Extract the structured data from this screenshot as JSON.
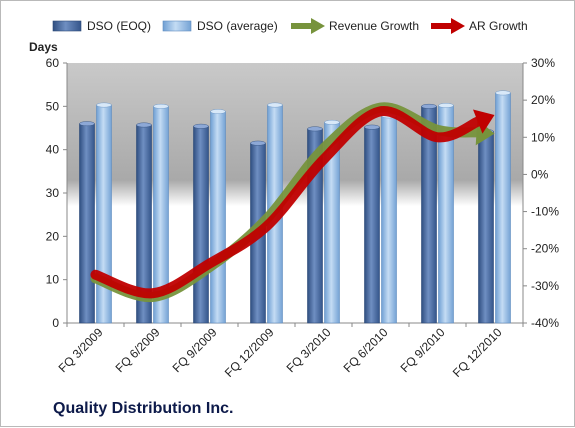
{
  "footer_title": "Quality Distribution Inc.",
  "chart_data": {
    "type": "bar+line",
    "categories": [
      "FQ 3/2009",
      "FQ 6/2009",
      "FQ 9/2009",
      "FQ 12/2009",
      "FQ 3/2010",
      "FQ 6/2010",
      "FQ 9/2010",
      "FQ 12/2010"
    ],
    "series": [
      {
        "name": "DSO (EOQ)",
        "kind": "bar",
        "axis": "left",
        "color": "#4f6d9f",
        "values": [
          46.0,
          45.7,
          45.4,
          41.5,
          44.8,
          45.2,
          50.0,
          44.2
        ]
      },
      {
        "name": "DSO (average)",
        "kind": "bar",
        "axis": "left",
        "color": "#8ab4e2",
        "values": [
          50.3,
          50.0,
          48.8,
          50.3,
          46.3,
          47.8,
          50.2,
          53.1
        ]
      },
      {
        "name": "Revenue Growth",
        "kind": "line-arrow",
        "axis": "right",
        "color": "#77933c",
        "values": [
          -0.28,
          -0.33,
          -0.25,
          -0.12,
          0.07,
          0.18,
          0.12,
          0.11
        ]
      },
      {
        "name": "AR Growth",
        "kind": "line-arrow",
        "axis": "right",
        "color": "#c00000",
        "values": [
          -0.27,
          -0.32,
          -0.24,
          -0.14,
          0.04,
          0.17,
          0.1,
          0.16
        ]
      }
    ],
    "ylabel": "Days",
    "ylim": [
      0,
      60
    ],
    "yticks": [
      "0",
      "10",
      "20",
      "30",
      "40",
      "50",
      "60"
    ],
    "y2lim": [
      -0.4,
      0.3
    ],
    "y2ticks": [
      "-40%",
      "-30%",
      "-20%",
      "-10%",
      "0%",
      "10%",
      "20%",
      "30%"
    ],
    "legend_position": "top",
    "grid": false
  }
}
